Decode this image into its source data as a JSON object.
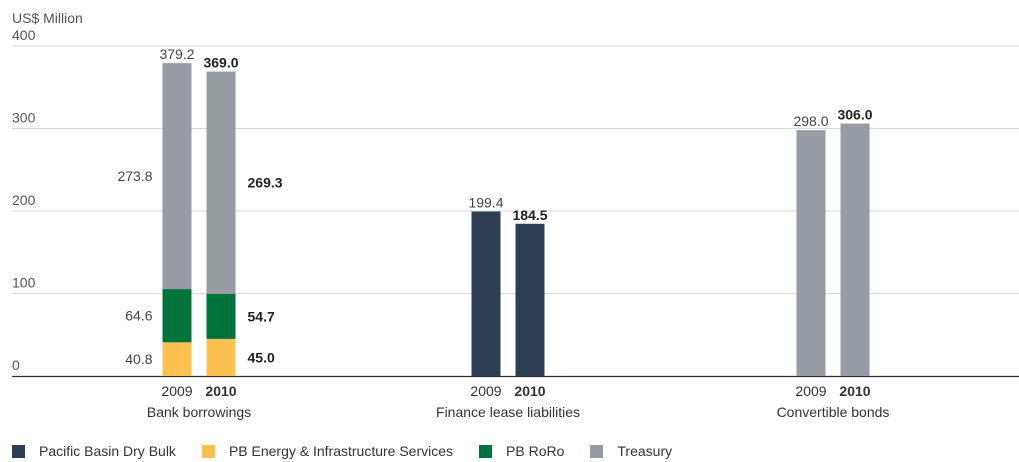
{
  "chart_data": {
    "type": "bar",
    "stacked": true,
    "unit_label": "US$ Million",
    "ylim": [
      0,
      400
    ],
    "yticks": [
      "0",
      "100",
      "200",
      "300",
      "400"
    ],
    "grid": true,
    "legend_position": "bottom-left",
    "series": [
      {
        "name": "Pacific Basin Dry Bulk",
        "color": "#2d3e55"
      },
      {
        "name": "PB Energy & Infrastructure Services",
        "color": "#fcc150"
      },
      {
        "name": "PB RoRo",
        "color": "#00733c"
      },
      {
        "name": "Treasury",
        "color": "#969ca1"
      }
    ],
    "groups": [
      {
        "name": "Bank borrowings",
        "bars": [
          {
            "year": "2009",
            "bold": false,
            "total": 379.2,
            "total_label": "379.2",
            "segments": [
              {
                "series": 1,
                "value": 40.8,
                "label": "40.8"
              },
              {
                "series": 2,
                "value": 64.6,
                "label": "64.6"
              },
              {
                "series": 3,
                "value": 273.8,
                "label": "273.8"
              }
            ]
          },
          {
            "year": "2010",
            "bold": true,
            "total": 369.0,
            "total_label": "369.0",
            "segments": [
              {
                "series": 1,
                "value": 45.0,
                "label": "45.0"
              },
              {
                "series": 2,
                "value": 54.7,
                "label": "54.7"
              },
              {
                "series": 3,
                "value": 269.3,
                "label": "269.3"
              }
            ]
          }
        ]
      },
      {
        "name": "Finance lease liabilities",
        "bars": [
          {
            "year": "2009",
            "bold": false,
            "total": 199.4,
            "total_label": "199.4",
            "segments": [
              {
                "series": 0,
                "value": 199.4,
                "label": ""
              }
            ]
          },
          {
            "year": "2010",
            "bold": true,
            "total": 184.5,
            "total_label": "184.5",
            "segments": [
              {
                "series": 0,
                "value": 184.5,
                "label": ""
              }
            ]
          }
        ]
      },
      {
        "name": "Convertible bonds",
        "bars": [
          {
            "year": "2009",
            "bold": false,
            "total": 298.0,
            "total_label": "298.0",
            "segments": [
              {
                "series": 3,
                "value": 298.0,
                "label": ""
              }
            ]
          },
          {
            "year": "2010",
            "bold": true,
            "total": 306.0,
            "total_label": "306.0",
            "segments": [
              {
                "series": 3,
                "value": 306.0,
                "label": ""
              }
            ]
          }
        ]
      }
    ]
  }
}
